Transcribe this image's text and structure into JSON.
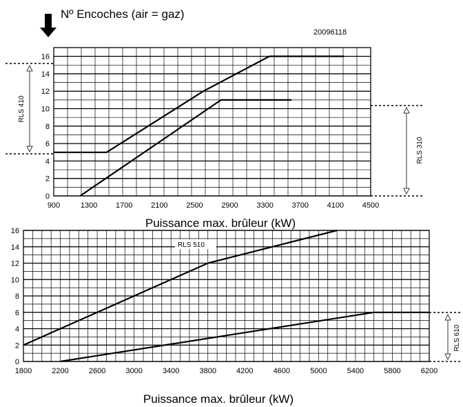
{
  "header": {
    "title": "Nº Encoches (air = gaz)",
    "code": "20096118"
  },
  "chart_data": [
    {
      "type": "line",
      "xlabel": "Puissance max. brûleur (kW)",
      "ylabel": "",
      "xlim": [
        900,
        4500
      ],
      "ylim": [
        0,
        17
      ],
      "x_ticks": [
        900,
        1300,
        1700,
        2100,
        2500,
        2900,
        3300,
        3700,
        4100,
        4500
      ],
      "y_ticks": [
        0,
        2,
        4,
        6,
        8,
        10,
        12,
        14,
        16
      ],
      "grid": true,
      "series": [
        {
          "name": "",
          "points": [
            [
              900,
              5
            ],
            [
              1500,
              5
            ],
            [
              2600,
              12
            ],
            [
              3350,
              16
            ],
            [
              4200,
              16
            ]
          ]
        },
        {
          "name": "",
          "points": [
            [
              1200,
              0
            ],
            [
              2800,
              11
            ],
            [
              3600,
              11
            ]
          ]
        }
      ],
      "range_annotations": [
        {
          "label": "RLS 410",
          "y_from": 5,
          "y_to": 16,
          "side": "left"
        },
        {
          "label": "RLS 310",
          "y_from": 0,
          "y_to": 11,
          "side": "right"
        }
      ]
    },
    {
      "type": "line",
      "xlabel": "Puissance max. brûleur (kW)",
      "ylabel": "",
      "xlim": [
        1800,
        6200
      ],
      "ylim": [
        0,
        16
      ],
      "x_ticks": [
        1800,
        2200,
        2600,
        3000,
        3400,
        3800,
        4200,
        4600,
        5000,
        5400,
        5800,
        6200
      ],
      "y_ticks": [
        0,
        2,
        4,
        6,
        8,
        10,
        12,
        14,
        16
      ],
      "grid": true,
      "series": [
        {
          "name": "",
          "points": [
            [
              1800,
              2
            ],
            [
              3800,
              12
            ],
            [
              5200,
              16
            ]
          ]
        },
        {
          "name": "",
          "points": [
            [
              2200,
              0
            ],
            [
              5600,
              6
            ],
            [
              6200,
              6
            ]
          ]
        }
      ],
      "annotations": [
        {
          "text": "RLS 510"
        }
      ],
      "range_annotations": [
        {
          "label": "RLS 610",
          "y_from": 0,
          "y_to": 6,
          "side": "right"
        }
      ]
    }
  ]
}
